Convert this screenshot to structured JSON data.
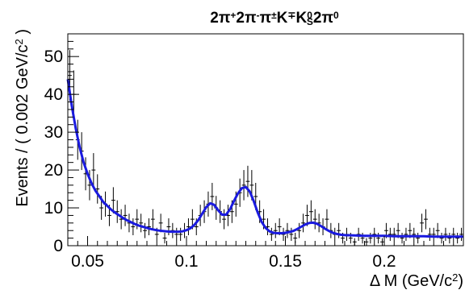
{
  "chart_data": {
    "type": "scatter",
    "title": {
      "parts": [
        {
          "t": "2",
          "s": ""
        },
        {
          "t": "π",
          "s": ""
        },
        {
          "t": "+",
          "s": "sup"
        },
        {
          "t": "2",
          "s": ""
        },
        {
          "t": "π",
          "s": ""
        },
        {
          "t": "-",
          "s": "sup"
        },
        {
          "t": "π",
          "s": ""
        },
        {
          "t": "±",
          "s": "sup"
        },
        {
          "t": "K",
          "s": ""
        },
        {
          "t": "∓",
          "s": "sup"
        },
        {
          "t": "K",
          "s": ""
        },
        {
          "t": "0",
          "s": "sup"
        },
        {
          "t": "S",
          "s": "sub"
        },
        {
          "t": "2",
          "s": ""
        },
        {
          "t": "π",
          "s": ""
        },
        {
          "t": "0",
          "s": "sup"
        }
      ]
    },
    "xlabel": {
      "main": "Δ M (GeV/c",
      "sup": "2",
      "tail": ")"
    },
    "ylabel": {
      "main": "Events / ( 0.002 GeV/c",
      "sup": "2",
      "tail": " )"
    },
    "xlim": [
      0.04,
      0.24
    ],
    "ylim": [
      0,
      56
    ],
    "x_ticks": [
      {
        "v": 0.05,
        "label": "0.05"
      },
      {
        "v": 0.1,
        "label": "0.1"
      },
      {
        "v": 0.15,
        "label": "0.15"
      },
      {
        "v": 0.2,
        "label": "0.2"
      }
    ],
    "y_ticks": [
      {
        "v": 0,
        "label": "0"
      },
      {
        "v": 10,
        "label": "10"
      },
      {
        "v": 20,
        "label": "20"
      },
      {
        "v": 30,
        "label": "30"
      },
      {
        "v": 40,
        "label": "40"
      },
      {
        "v": 50,
        "label": "50"
      }
    ],
    "series": [
      {
        "kind": "data_points",
        "bin_width": 0.002,
        "x": [
          0.041,
          0.043,
          0.045,
          0.047,
          0.049,
          0.051,
          0.053,
          0.055,
          0.057,
          0.059,
          0.061,
          0.063,
          0.065,
          0.067,
          0.069,
          0.071,
          0.073,
          0.075,
          0.077,
          0.079,
          0.081,
          0.083,
          0.085,
          0.087,
          0.089,
          0.091,
          0.093,
          0.095,
          0.097,
          0.099,
          0.101,
          0.103,
          0.105,
          0.107,
          0.109,
          0.111,
          0.113,
          0.115,
          0.117,
          0.119,
          0.121,
          0.123,
          0.125,
          0.127,
          0.129,
          0.131,
          0.133,
          0.135,
          0.137,
          0.139,
          0.141,
          0.143,
          0.145,
          0.147,
          0.149,
          0.151,
          0.153,
          0.155,
          0.157,
          0.159,
          0.161,
          0.163,
          0.165,
          0.167,
          0.169,
          0.171,
          0.173,
          0.175,
          0.177,
          0.179,
          0.181,
          0.183,
          0.185,
          0.187,
          0.189,
          0.191,
          0.193,
          0.195,
          0.197,
          0.199,
          0.201,
          0.203,
          0.205,
          0.207,
          0.209,
          0.211,
          0.213,
          0.215,
          0.217,
          0.219,
          0.221,
          0.223,
          0.225,
          0.227,
          0.229,
          0.231,
          0.233,
          0.235,
          0.237,
          0.239
        ],
        "y": [
          45,
          40,
          28,
          25,
          19,
          16,
          20,
          15,
          10,
          11,
          8,
          12,
          9,
          7,
          8,
          6,
          5,
          7,
          6,
          4,
          5,
          7,
          3,
          6,
          2,
          5,
          4,
          3,
          3,
          4,
          5,
          7,
          5,
          8,
          9,
          11,
          13,
          10,
          9,
          7,
          8,
          9,
          11,
          14,
          16,
          17,
          16,
          13,
          9,
          7,
          5,
          3,
          4,
          5,
          3,
          4,
          3,
          2,
          4,
          6,
          8,
          9,
          7,
          6,
          5,
          7,
          4,
          3,
          4,
          2,
          3,
          2,
          1,
          3,
          2,
          1,
          2,
          3,
          2,
          1,
          4,
          3,
          3,
          4,
          2,
          3,
          4,
          3,
          2,
          6,
          7,
          3,
          3,
          4,
          2,
          3,
          2,
          3,
          2,
          3
        ]
      },
      {
        "kind": "fit_curve",
        "color": "#1a1adf",
        "x": [
          0.04,
          0.042,
          0.044,
          0.046,
          0.048,
          0.05,
          0.052,
          0.054,
          0.056,
          0.058,
          0.06,
          0.062,
          0.064,
          0.066,
          0.068,
          0.07,
          0.072,
          0.074,
          0.076,
          0.078,
          0.08,
          0.082,
          0.084,
          0.086,
          0.088,
          0.09,
          0.092,
          0.094,
          0.096,
          0.098,
          0.1,
          0.102,
          0.104,
          0.106,
          0.108,
          0.11,
          0.112,
          0.114,
          0.116,
          0.118,
          0.12,
          0.122,
          0.124,
          0.126,
          0.128,
          0.13,
          0.132,
          0.134,
          0.136,
          0.138,
          0.14,
          0.142,
          0.144,
          0.146,
          0.148,
          0.15,
          0.152,
          0.154,
          0.156,
          0.158,
          0.16,
          0.162,
          0.164,
          0.166,
          0.168,
          0.17,
          0.172,
          0.174,
          0.176,
          0.178,
          0.18,
          0.185,
          0.19,
          0.195,
          0.2,
          0.205,
          0.21,
          0.215,
          0.22,
          0.225,
          0.23,
          0.235,
          0.24
        ],
        "y": [
          44,
          37,
          31,
          26,
          22,
          19,
          16.5,
          14.5,
          13,
          11.5,
          10.5,
          9.5,
          8.7,
          8,
          7.3,
          6.7,
          6.2,
          5.7,
          5.3,
          5,
          4.7,
          4.4,
          4.2,
          4,
          3.9,
          3.8,
          3.7,
          3.7,
          3.7,
          3.8,
          4.1,
          4.6,
          5.5,
          6.8,
          8.5,
          10.2,
          11.2,
          10.8,
          9.4,
          8.2,
          8.2,
          9.6,
          11.8,
          13.8,
          15.2,
          15.5,
          14.3,
          11.8,
          8.8,
          6.3,
          4.7,
          3.8,
          3.4,
          3.3,
          3.3,
          3.4,
          3.6,
          3.9,
          4.4,
          5,
          5.6,
          6,
          6.1,
          5.8,
          5.2,
          4.5,
          3.9,
          3.4,
          3.1,
          2.9,
          2.8,
          2.7,
          2.6,
          2.6,
          2.6,
          2.5,
          2.5,
          2.5,
          2.5,
          2.4,
          2.4,
          2.4,
          2.4
        ]
      }
    ],
    "grid": false,
    "legend": "none"
  }
}
